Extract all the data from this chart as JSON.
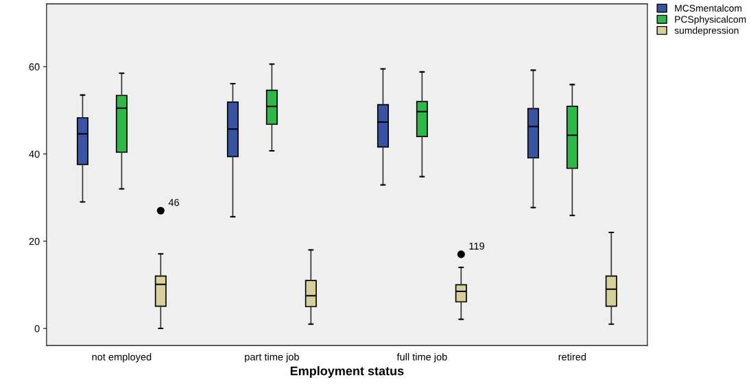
{
  "chart_data": {
    "type": "box",
    "xlabel": "Employment status",
    "categories": [
      "not employed",
      "part time job",
      "full time job",
      "retired"
    ],
    "ylim": [
      -3.9,
      74.4
    ],
    "yticks": [
      0,
      20,
      40,
      60
    ],
    "grid": false,
    "legend": "top right",
    "series": [
      {
        "name": "MCSmentalcom",
        "color": "#3a54a4",
        "boxes": [
          {
            "low": 29,
            "q1": 37.6,
            "median": 44.6,
            "q3": 48.3,
            "high": 53.5
          },
          {
            "low": 25.6,
            "q1": 39.4,
            "median": 45.7,
            "q3": 51.9,
            "high": 56.1
          },
          {
            "low": 32.9,
            "q1": 41.6,
            "median": 47.3,
            "q3": 51.3,
            "high": 59.5
          },
          {
            "low": 27.7,
            "q1": 39.1,
            "median": 46.3,
            "q3": 50.4,
            "high": 59.2
          }
        ]
      },
      {
        "name": "PCSphysicalcom",
        "color": "#2eb84a",
        "boxes": [
          {
            "low": 32,
            "q1": 40.4,
            "median": 50.5,
            "q3": 53.4,
            "high": 58.5
          },
          {
            "low": 40.7,
            "q1": 46.8,
            "median": 50.9,
            "q3": 54.6,
            "high": 60.6
          },
          {
            "low": 34.8,
            "q1": 44,
            "median": 49.7,
            "q3": 52,
            "high": 58.8
          },
          {
            "low": 25.9,
            "q1": 36.7,
            "median": 44.3,
            "q3": 50.9,
            "high": 55.9
          }
        ]
      },
      {
        "name": "sumdepression",
        "color": "#d8d09a",
        "boxes": [
          {
            "low": 0,
            "q1": 5.1,
            "median": 10.1,
            "q3": 12,
            "high": 17.1,
            "outliers": [
              27
            ]
          },
          {
            "low": 1,
            "q1": 5,
            "median": 7.5,
            "q3": 11,
            "high": 18
          },
          {
            "low": 2.1,
            "q1": 6.1,
            "median": 8.5,
            "q3": 10,
            "high": 14,
            "outliers": [
              17
            ]
          },
          {
            "low": 1,
            "q1": 5.1,
            "median": 9,
            "q3": 12,
            "high": 22
          }
        ]
      }
    ],
    "annotations": [
      "46",
      "119"
    ]
  }
}
